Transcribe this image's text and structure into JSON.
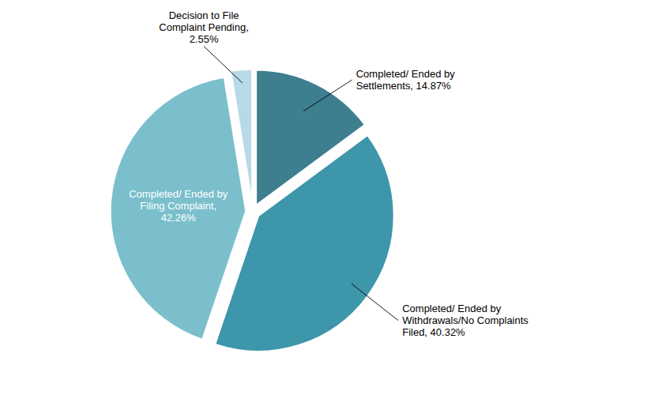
{
  "chart_data": {
    "type": "pie",
    "categories": [
      "Completed/ Ended by\nSettlements, 14.87%",
      "Completed/ Ended by\nWithdrawals/No Complaints\nFiled, 40.32%",
      "Completed/ Ended by\nFiling Complaint,\n42.26%",
      "Decision to File\nComplaint Pending,\n2.55%"
    ],
    "values": [
      14.87,
      40.32,
      42.26,
      2.55
    ],
    "colors": [
      "#3d7f8f",
      "#3d96aa",
      "#7bbfcc",
      "#b8d9e8"
    ]
  }
}
